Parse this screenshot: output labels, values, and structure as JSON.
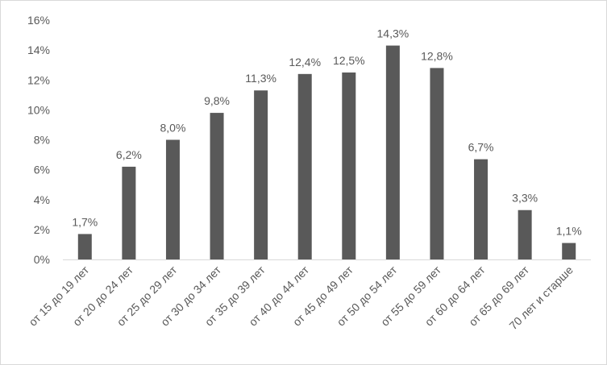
{
  "chart_data": {
    "type": "bar",
    "title": "",
    "xlabel": "",
    "ylabel": "",
    "categories": [
      "от 15 до 19 лет",
      "от 20 до 24 лет",
      "от 25 до 29 лет",
      "от 30 до 34 лет",
      "от 35 до 39 лет",
      "от 40 до 44 лет",
      "от 45 до 49 лет",
      "от 50 до 54 лет",
      "от 55 до 59 лет",
      "от 60 до 64 лет",
      "от 65 до 69 лет",
      "70 лет и старше"
    ],
    "values": [
      1.7,
      6.2,
      8.0,
      9.8,
      11.3,
      12.4,
      12.5,
      14.3,
      12.8,
      6.7,
      3.3,
      1.1
    ],
    "data_labels": [
      "1,7%",
      "6,2%",
      "8,0%",
      "9,8%",
      "11,3%",
      "12,4%",
      "12,5%",
      "14,3%",
      "12,8%",
      "6,7%",
      "3,3%",
      "1,1%"
    ],
    "ylim": [
      0,
      16
    ],
    "y_ticks": [
      0,
      2,
      4,
      6,
      8,
      10,
      12,
      14,
      16
    ],
    "y_tick_labels": [
      "0%",
      "2%",
      "4%",
      "6%",
      "8%",
      "10%",
      "12%",
      "14%",
      "16%"
    ],
    "grid": false,
    "legend": "none",
    "bar_color": "#595959",
    "axis_color": "#d9d9d9",
    "text_color": "#595959"
  }
}
